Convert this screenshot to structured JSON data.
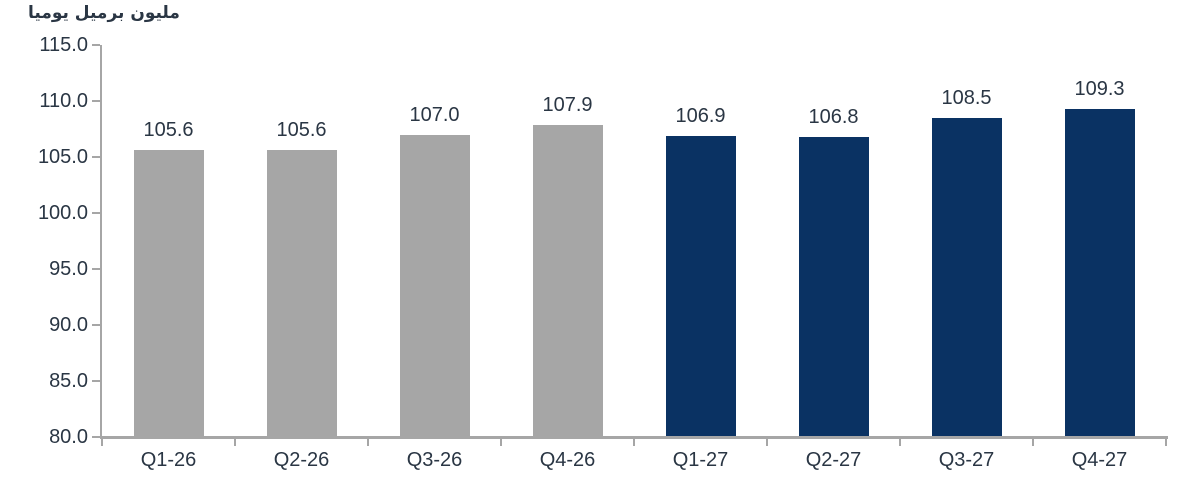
{
  "chart_data": {
    "type": "bar",
    "title": "مليون برميل يوميا",
    "categories": [
      "Q1-26",
      "Q2-26",
      "Q3-26",
      "Q4-26",
      "Q1-27",
      "Q2-27",
      "Q3-27",
      "Q4-27"
    ],
    "values": [
      105.6,
      105.6,
      107.0,
      107.9,
      106.9,
      106.8,
      108.5,
      109.3
    ],
    "data_labels": [
      "105.6",
      "105.6",
      "107.0",
      "107.9",
      "106.9",
      "106.8",
      "108.5",
      "109.3"
    ],
    "bar_colors": [
      "#A6A6A6",
      "#A6A6A6",
      "#A6A6A6",
      "#A6A6A6",
      "#0A3263",
      "#0A3263",
      "#0A3263",
      "#0A3263"
    ],
    "yticks": [
      "115.0",
      "110.0",
      "105.0",
      "100.0",
      "95.0",
      "90.0",
      "85.0",
      "80.0"
    ],
    "ylim": [
      80,
      115
    ],
    "ytick_step": 5,
    "grid": false,
    "legend": "none",
    "colors": {
      "gray_2026_bars": "#A6A6A6",
      "navy_2027_bars": "#0A3263",
      "axis": "#A6A6A6",
      "text": "#2A3644"
    }
  }
}
